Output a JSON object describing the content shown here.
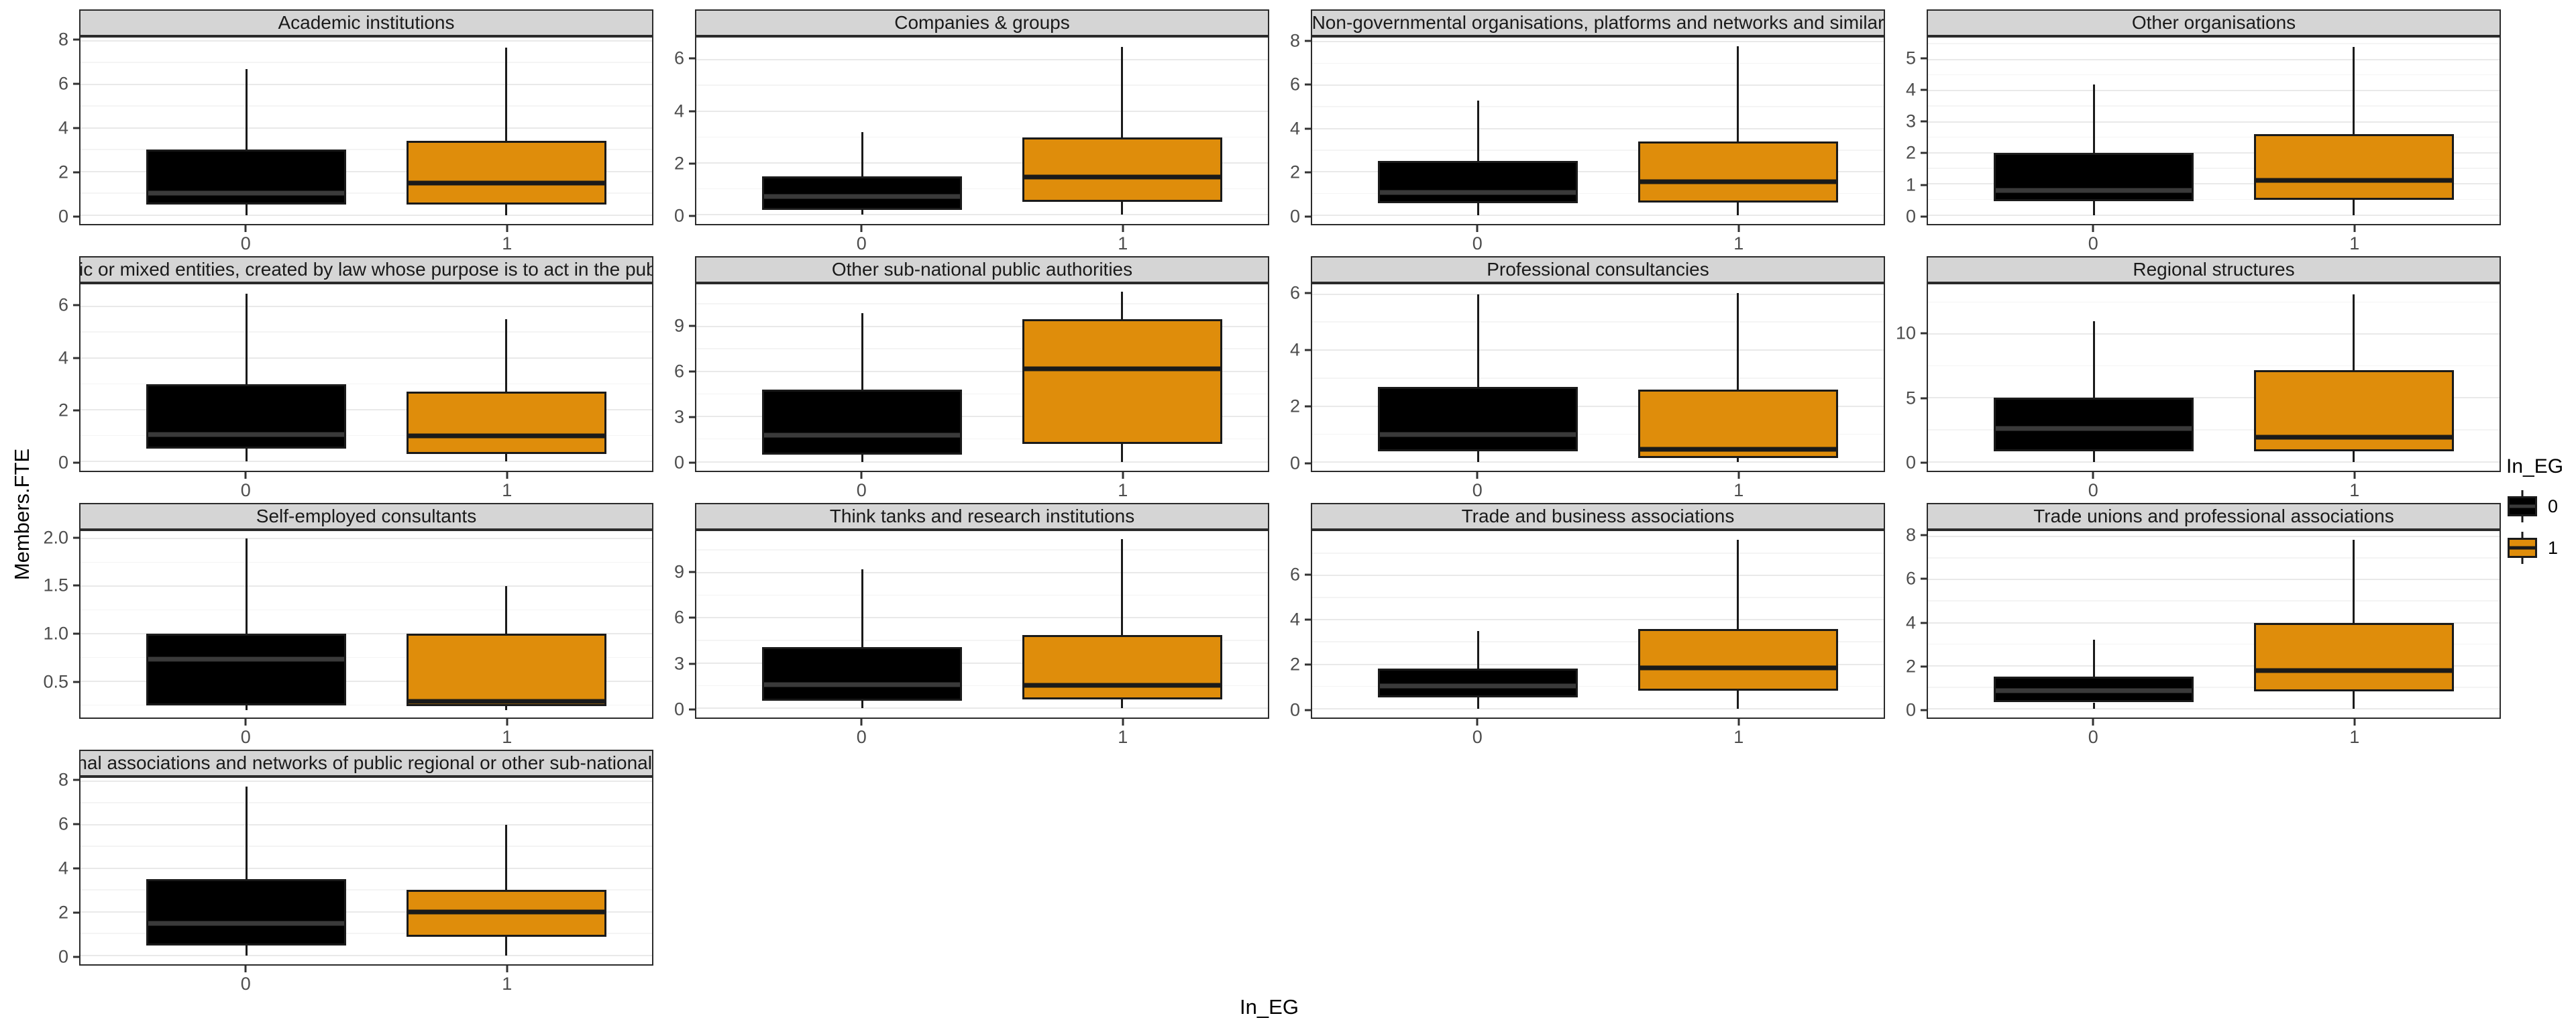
{
  "figure": {
    "y_axis_title": "Members.FTE",
    "x_axis_title": "In_EG",
    "legend": {
      "title": "In_EG",
      "items": [
        {
          "label": "0",
          "fill": "#000000"
        },
        {
          "label": "1",
          "fill": "#DF8D0B"
        }
      ]
    },
    "colors": {
      "strip_fill": "#D5D5D5",
      "panel_border": "#2b2b2b",
      "grid_major": "#e9e9e9",
      "grid_minor": "#f4f4f4",
      "box_stroke": "#1a1a1a",
      "black_fill": "#000000",
      "orange_fill": "#DF8D0B"
    }
  },
  "chart_data": {
    "type": "boxplot",
    "facet_variable": "organisation type",
    "x_variable": "In_EG",
    "y_variable": "Members.FTE",
    "x_categories": [
      "0",
      "1"
    ],
    "legend_position": "right",
    "grid": true,
    "series_defs": [
      {
        "name": "0",
        "fill": "#000000",
        "median_color": "#3a3a3a"
      },
      {
        "name": "1",
        "fill": "#DF8D0B",
        "median_color": "#1a1a1a"
      }
    ],
    "layout": {
      "box_centers": [
        0.29,
        0.745
      ],
      "box_width": 0.35
    },
    "panels": [
      {
        "title": "Academic institutions",
        "y_ticks": [
          0,
          2,
          4,
          6,
          8
        ],
        "y_tick_labels": [
          "0",
          "2",
          "4",
          "6",
          "8"
        ],
        "ylim": [
          -0.4,
          8.15
        ],
        "boxes": [
          {
            "group": "0",
            "whisker_low": 0,
            "q1": 0.5,
            "median": 0.95,
            "q3": 3.0,
            "whisker_high": 6.7
          },
          {
            "group": "1",
            "whisker_low": 0,
            "q1": 0.5,
            "median": 1.45,
            "q3": 3.4,
            "whisker_high": 7.7
          }
        ]
      },
      {
        "title": "Companies & groups",
        "y_ticks": [
          0,
          2,
          4,
          6
        ],
        "y_tick_labels": [
          "0",
          "2",
          "4",
          "6"
        ],
        "ylim": [
          -0.35,
          6.85
        ],
        "boxes": [
          {
            "group": "0",
            "whisker_low": 0,
            "q1": 0.2,
            "median": 0.7,
            "q3": 1.5,
            "whisker_high": 3.2
          },
          {
            "group": "1",
            "whisker_low": 0,
            "q1": 0.5,
            "median": 1.45,
            "q3": 3.0,
            "whisker_high": 6.5
          }
        ]
      },
      {
        "title": "Non-governmental organisations, platforms and networks and similar",
        "y_ticks": [
          0,
          2,
          4,
          6,
          8
        ],
        "y_tick_labels": [
          "0",
          "2",
          "4",
          "6",
          "8"
        ],
        "ylim": [
          -0.4,
          8.2
        ],
        "boxes": [
          {
            "group": "0",
            "whisker_low": 0,
            "q1": 0.55,
            "median": 1.0,
            "q3": 2.5,
            "whisker_high": 5.3
          },
          {
            "group": "1",
            "whisker_low": 0,
            "q1": 0.6,
            "median": 1.5,
            "q3": 3.4,
            "whisker_high": 7.8
          }
        ]
      },
      {
        "title": "Other organisations",
        "y_ticks": [
          0,
          1,
          2,
          3,
          4,
          5
        ],
        "y_tick_labels": [
          "0",
          "1",
          "2",
          "3",
          "4",
          "5"
        ],
        "ylim": [
          -0.28,
          5.7
        ],
        "boxes": [
          {
            "group": "0",
            "whisker_low": 0,
            "q1": 0.45,
            "median": 0.75,
            "q3": 2.0,
            "whisker_high": 4.2
          },
          {
            "group": "1",
            "whisker_low": 0,
            "q1": 0.5,
            "median": 1.1,
            "q3": 2.6,
            "whisker_high": 5.4
          }
        ]
      },
      {
        "title": "Other public or mixed entities, created by law whose purpose is to act in the public interest",
        "y_ticks": [
          0,
          2,
          4,
          6
        ],
        "y_tick_labels": [
          "0",
          "2",
          "4",
          "6"
        ],
        "ylim": [
          -0.35,
          6.85
        ],
        "boxes": [
          {
            "group": "0",
            "whisker_low": 0,
            "q1": 0.5,
            "median": 1.0,
            "q3": 3.0,
            "whisker_high": 6.5
          },
          {
            "group": "1",
            "whisker_low": 0,
            "q1": 0.3,
            "median": 0.95,
            "q3": 2.7,
            "whisker_high": 5.5
          }
        ]
      },
      {
        "title": "Other sub-national public authorities",
        "y_ticks": [
          0,
          3,
          6,
          9
        ],
        "y_tick_labels": [
          "0",
          "3",
          "6",
          "9"
        ],
        "ylim": [
          -0.6,
          11.8
        ],
        "boxes": [
          {
            "group": "0",
            "whisker_low": 0,
            "q1": 0.45,
            "median": 1.7,
            "q3": 4.8,
            "whisker_high": 9.9
          },
          {
            "group": "1",
            "whisker_low": 0,
            "q1": 1.2,
            "median": 6.2,
            "q3": 9.5,
            "whisker_high": 11.3
          }
        ]
      },
      {
        "title": "Professional consultancies",
        "y_ticks": [
          0,
          2,
          4,
          6
        ],
        "y_tick_labels": [
          "0",
          "2",
          "4",
          "6"
        ],
        "ylim": [
          -0.3,
          6.35
        ],
        "boxes": [
          {
            "group": "0",
            "whisker_low": 0,
            "q1": 0.4,
            "median": 0.95,
            "q3": 2.7,
            "whisker_high": 6.0
          },
          {
            "group": "1",
            "whisker_low": 0,
            "q1": 0.15,
            "median": 0.4,
            "q3": 2.6,
            "whisker_high": 6.05
          }
        ]
      },
      {
        "title": "Regional structures",
        "y_ticks": [
          0,
          5,
          10
        ],
        "y_tick_labels": [
          "0",
          "5",
          "10"
        ],
        "ylim": [
          -0.7,
          13.9
        ],
        "boxes": [
          {
            "group": "0",
            "whisker_low": 0,
            "q1": 0.8,
            "median": 2.6,
            "q3": 5.0,
            "whisker_high": 11.0
          },
          {
            "group": "1",
            "whisker_low": 0,
            "q1": 0.8,
            "median": 1.8,
            "q3": 7.2,
            "whisker_high": 13.1
          }
        ]
      },
      {
        "title": "Self-employed consultants",
        "y_ticks": [
          0.5,
          1.0,
          1.5,
          2.0
        ],
        "y_tick_labels": [
          "0.5",
          "1.0",
          "1.5",
          "2.0"
        ],
        "ylim": [
          0.12,
          2.08
        ],
        "boxes": [
          {
            "group": "0",
            "whisker_low": 0.2,
            "q1": 0.25,
            "median": 0.74,
            "q3": 1.0,
            "whisker_high": 2.0
          },
          {
            "group": "1",
            "whisker_low": 0.2,
            "q1": 0.24,
            "median": 0.27,
            "q3": 1.0,
            "whisker_high": 1.5
          }
        ]
      },
      {
        "title": "Think tanks and research institutions",
        "y_ticks": [
          0,
          3,
          6,
          9
        ],
        "y_tick_labels": [
          "0",
          "3",
          "6",
          "9"
        ],
        "ylim": [
          -0.6,
          11.75
        ],
        "boxes": [
          {
            "group": "0",
            "whisker_low": 0,
            "q1": 0.5,
            "median": 1.5,
            "q3": 4.05,
            "whisker_high": 9.2
          },
          {
            "group": "1",
            "whisker_low": 0,
            "q1": 0.6,
            "median": 1.45,
            "q3": 4.85,
            "whisker_high": 11.2
          }
        ]
      },
      {
        "title": "Trade and business associations",
        "y_ticks": [
          0,
          2,
          4,
          6
        ],
        "y_tick_labels": [
          "0",
          "2",
          "4",
          "6"
        ],
        "ylim": [
          -0.4,
          8.0
        ],
        "boxes": [
          {
            "group": "0",
            "whisker_low": 0,
            "q1": 0.5,
            "median": 1.0,
            "q3": 1.8,
            "whisker_high": 3.5
          },
          {
            "group": "1",
            "whisker_low": 0,
            "q1": 0.8,
            "median": 1.8,
            "q3": 3.6,
            "whisker_high": 7.6
          }
        ]
      },
      {
        "title": "Trade unions and professional associations",
        "y_ticks": [
          0,
          2,
          4,
          6,
          8
        ],
        "y_tick_labels": [
          "0",
          "2",
          "4",
          "6",
          "8"
        ],
        "ylim": [
          -0.4,
          8.25
        ],
        "boxes": [
          {
            "group": "0",
            "whisker_low": 0,
            "q1": 0.3,
            "median": 0.85,
            "q3": 1.5,
            "whisker_high": 3.2
          },
          {
            "group": "1",
            "whisker_low": 0,
            "q1": 0.8,
            "median": 1.75,
            "q3": 4.0,
            "whisker_high": 7.85
          }
        ]
      },
      {
        "title": "Transnational associations and networks of public regional or other sub-national authorities",
        "y_ticks": [
          0,
          2,
          4,
          6,
          8
        ],
        "y_tick_labels": [
          "0",
          "2",
          "4",
          "6",
          "8"
        ],
        "ylim": [
          -0.4,
          8.15
        ],
        "boxes": [
          {
            "group": "0",
            "whisker_low": 0,
            "q1": 0.45,
            "median": 1.45,
            "q3": 3.5,
            "whisker_high": 7.75
          },
          {
            "group": "1",
            "whisker_low": 0,
            "q1": 0.85,
            "median": 2.0,
            "q3": 3.0,
            "whisker_high": 6.0
          }
        ]
      }
    ]
  }
}
